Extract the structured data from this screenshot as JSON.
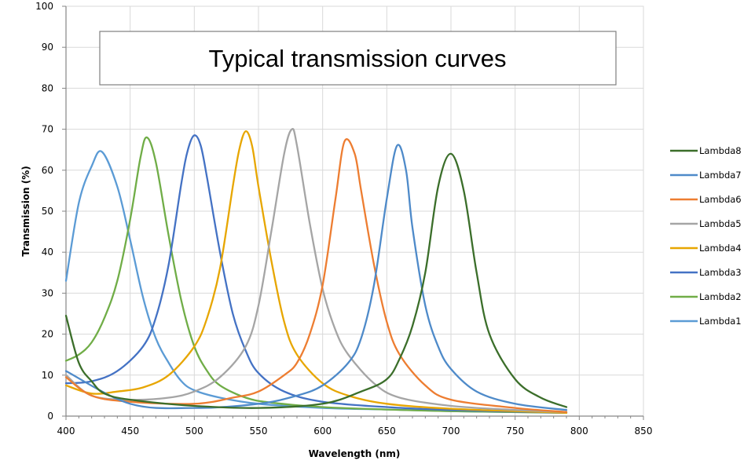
{
  "chart_data": {
    "type": "line",
    "title": "Typical transmission curves",
    "xlabel": "Wavelength (nm)",
    "ylabel": "Transmission (%)",
    "xlim": [
      400,
      850
    ],
    "ylim": [
      0,
      100
    ],
    "x_ticks": [
      400,
      450,
      500,
      550,
      600,
      650,
      700,
      750,
      800,
      850
    ],
    "y_ticks": [
      0,
      10,
      20,
      30,
      40,
      50,
      60,
      70,
      80,
      90,
      100
    ],
    "grid": true,
    "legend_position": "right",
    "legend_order": [
      "Lambda8",
      "Lambda7",
      "Lambda6",
      "Lambda5",
      "Lambda4",
      "Lambda3",
      "Lambda2",
      "Lambda1"
    ],
    "series": [
      {
        "name": "Lambda1",
        "color": "#5B9BD5",
        "x": [
          400,
          410,
          420,
          428,
          440,
          450,
          460,
          470,
          480,
          490,
          500,
          520,
          550,
          600,
          650,
          700,
          750,
          790
        ],
        "y": [
          33,
          52,
          61,
          64.5,
          56,
          43,
          29,
          19,
          13,
          8.5,
          6.3,
          4.5,
          3,
          2,
          1.6,
          1.2,
          1,
          0.8
        ]
      },
      {
        "name": "Lambda2",
        "color": "#70AD47",
        "x": [
          400,
          410,
          420,
          430,
          440,
          450,
          458,
          463,
          470,
          480,
          490,
          500,
          510,
          520,
          540,
          560,
          600,
          650,
          700,
          790
        ],
        "y": [
          13.5,
          15,
          18,
          24,
          33,
          48,
          63,
          68,
          62,
          44,
          28,
          17,
          11,
          7.5,
          4.5,
          3.3,
          2.2,
          1.6,
          1.2,
          0.8
        ]
      },
      {
        "name": "Lambda3",
        "color": "#4472C4",
        "x": [
          400,
          420,
          440,
          460,
          470,
          480,
          490,
          495,
          500,
          505,
          510,
          520,
          530,
          540,
          550,
          570,
          600,
          650,
          700,
          790
        ],
        "y": [
          8,
          8.5,
          11,
          17,
          24,
          37,
          57,
          65,
          68.5,
          66,
          58,
          40,
          25,
          16,
          10.5,
          6,
          3.5,
          2.2,
          1.5,
          0.8
        ]
      },
      {
        "name": "Lambda4",
        "color": "#E7A600",
        "x": [
          400,
          420,
          440,
          460,
          480,
          500,
          510,
          520,
          530,
          535,
          540,
          545,
          550,
          560,
          570,
          580,
          600,
          620,
          650,
          700,
          790
        ],
        "y": [
          7.5,
          5.5,
          6,
          7,
          10,
          17,
          24,
          36,
          56,
          65,
          69.5,
          66,
          56,
          38,
          23,
          15,
          8,
          5,
          3,
          1.8,
          0.8
        ]
      },
      {
        "name": "Lambda5",
        "color": "#A5A5A5",
        "x": [
          400,
          420,
          450,
          480,
          500,
          520,
          540,
          550,
          560,
          570,
          576,
          580,
          590,
          600,
          610,
          620,
          640,
          660,
          700,
          750,
          790
        ],
        "y": [
          10,
          5,
          4,
          4.5,
          6,
          9.5,
          17,
          27,
          45,
          64,
          70,
          66,
          47,
          31,
          21,
          15,
          8,
          4.5,
          2.5,
          1.5,
          1
        ]
      },
      {
        "name": "Lambda6",
        "color": "#ED7D31",
        "x": [
          400,
          420,
          450,
          500,
          530,
          550,
          570,
          580,
          590,
          600,
          610,
          617,
          625,
          630,
          640,
          650,
          660,
          680,
          700,
          750,
          790
        ],
        "y": [
          9.5,
          5,
          3.5,
          3,
          4.5,
          6,
          10,
          13,
          20,
          32,
          53,
          67,
          64,
          55,
          37,
          23,
          15,
          7.5,
          4,
          2,
          1
        ]
      },
      {
        "name": "Lambda7",
        "color": "#4E8AC9",
        "x": [
          400,
          450,
          500,
          550,
          580,
          600,
          620,
          630,
          640,
          650,
          658,
          665,
          670,
          680,
          690,
          700,
          720,
          750,
          790
        ],
        "y": [
          11,
          3,
          2,
          3,
          5,
          7.5,
          13,
          19,
          32,
          53,
          66,
          60,
          46,
          27,
          17,
          11.5,
          6,
          3,
          1.5
        ]
      },
      {
        "name": "Lambda8",
        "color": "#3B6E2A",
        "x": [
          400,
          410,
          420,
          430,
          450,
          500,
          550,
          600,
          630,
          650,
          660,
          670,
          680,
          690,
          700,
          710,
          720,
          730,
          750,
          770,
          790
        ],
        "y": [
          24.5,
          13,
          8.5,
          5.5,
          4,
          2.5,
          2,
          3,
          6,
          9,
          14,
          22,
          35,
          56,
          64,
          55,
          35,
          20,
          9,
          4.5,
          2.2
        ]
      }
    ]
  }
}
